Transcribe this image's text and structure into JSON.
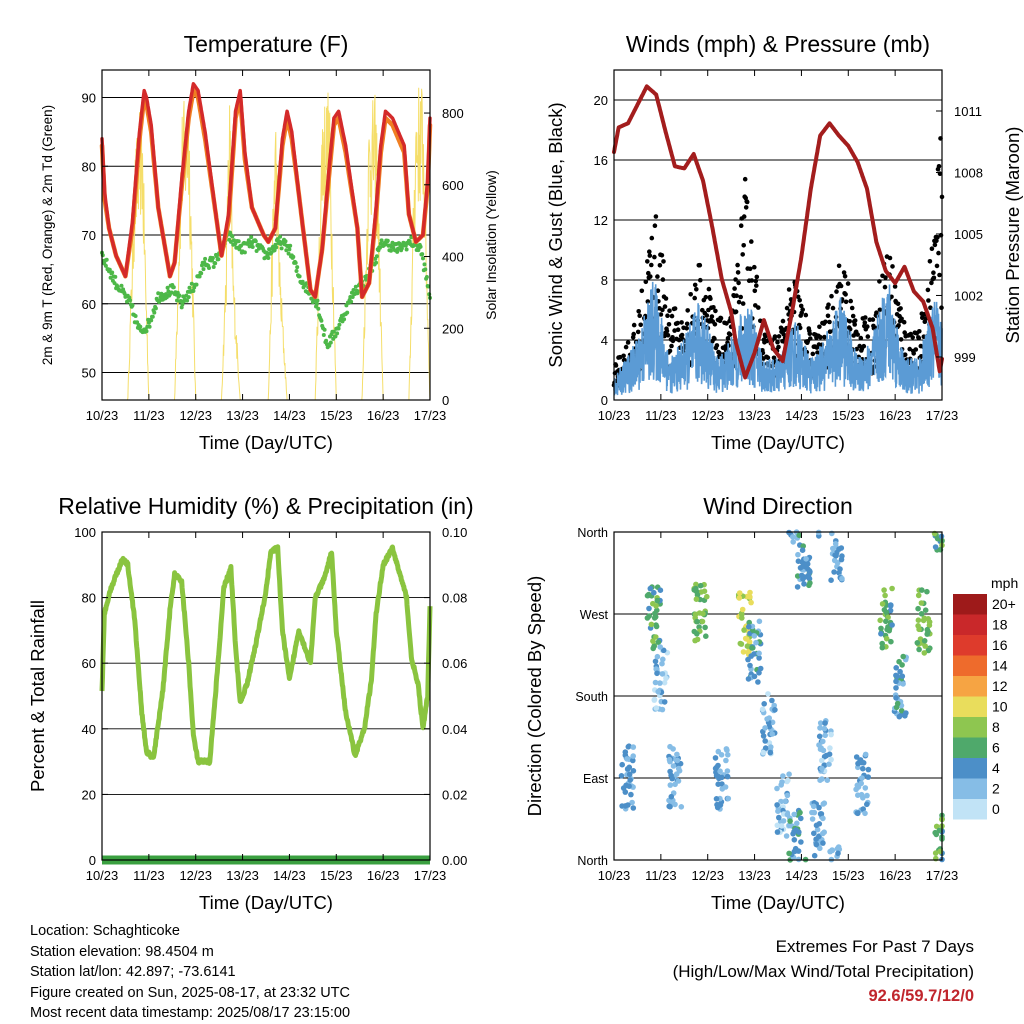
{
  "chart_data": [
    {
      "type": "line",
      "title": "Temperature (F)",
      "xlabel": "Time (Day/UTC)",
      "ylabel": "2m & 9m T (Red, Orange) & 2m Td (Green)",
      "y2label": "Solar Insolation (Yellow)",
      "x_ticks": [
        "10/23",
        "11/23",
        "12/23",
        "13/23",
        "14/23",
        "15/23",
        "16/23",
        "17/23"
      ],
      "ylim": [
        46,
        94
      ],
      "y_ticks": [
        50,
        60,
        70,
        80,
        90
      ],
      "y2lim": [
        0,
        920
      ],
      "y2_ticks": [
        0,
        200,
        400,
        600,
        800
      ],
      "grid": true,
      "colors": {
        "temp_2m": "#d42a2a",
        "temp_9m": "#f07f22",
        "dewpoint": "#4db848",
        "solar": "#f5de6a"
      },
      "series": [
        {
          "name": "2m T",
          "axis": "left",
          "x": [
            0,
            0.06,
            0.15,
            0.3,
            0.5,
            0.65,
            0.8,
            0.9,
            0.95,
            1.05,
            1.2,
            1.45,
            1.55,
            1.7,
            1.85,
            1.95,
            2.05,
            2.2,
            2.45,
            2.55,
            2.7,
            2.85,
            2.95,
            3.05,
            3.2,
            3.45,
            3.55,
            3.7,
            3.85,
            3.95,
            4.05,
            4.2,
            4.45,
            4.55,
            4.7,
            4.85,
            4.95,
            5.05,
            5.2,
            5.45,
            5.55,
            5.7,
            5.85,
            5.95,
            6.05,
            6.2,
            6.45,
            6.55,
            6.7,
            6.85,
            6.95,
            7.0
          ],
          "y": [
            84,
            76,
            71,
            67,
            64,
            72,
            85,
            91,
            90,
            86,
            74,
            64,
            66,
            78,
            88,
            92,
            91,
            85,
            72,
            67,
            73,
            88,
            91,
            82,
            74,
            70,
            69,
            71,
            84,
            88,
            85,
            76,
            62,
            61,
            68,
            80,
            87,
            88,
            83,
            71,
            61,
            63,
            74,
            83,
            88,
            87,
            83,
            73,
            69,
            70,
            78,
            87
          ]
        },
        {
          "name": "9m T",
          "axis": "left",
          "x": [
            0,
            0.06,
            0.15,
            0.3,
            0.5,
            0.65,
            0.8,
            0.9,
            0.95,
            1.05,
            1.2,
            1.45,
            1.55,
            1.7,
            1.85,
            1.95,
            2.05,
            2.2,
            2.45,
            2.55,
            2.7,
            2.85,
            2.95,
            3.05,
            3.2,
            3.45,
            3.55,
            3.7,
            3.85,
            3.95,
            4.05,
            4.2,
            4.45,
            4.55,
            4.7,
            4.85,
            4.95,
            5.05,
            5.2,
            5.45,
            5.55,
            5.7,
            5.85,
            5.95,
            6.05,
            6.2,
            6.45,
            6.55,
            6.7,
            6.85,
            6.95,
            7.0
          ],
          "y": [
            83,
            75,
            71,
            67,
            64,
            71,
            84,
            90,
            89,
            85,
            74,
            64,
            66,
            77,
            87,
            91,
            90,
            84,
            72,
            67,
            72,
            87,
            90,
            81,
            74,
            70,
            69,
            71,
            83,
            87,
            84,
            76,
            62,
            61,
            68,
            79,
            86,
            87,
            82,
            71,
            61,
            63,
            73,
            82,
            87,
            86,
            82,
            73,
            69,
            70,
            77,
            86
          ]
        },
        {
          "name": "2m Td",
          "axis": "left",
          "x": [
            0,
            0.3,
            0.6,
            0.8,
            1.0,
            1.2,
            1.5,
            1.7,
            2.0,
            2.2,
            2.4,
            2.7,
            2.8,
            3.0,
            3.2,
            3.5,
            3.8,
            4.0,
            4.2,
            4.4,
            4.6,
            4.8,
            5.0,
            5.2,
            5.4,
            5.6,
            5.8,
            6.0,
            6.3,
            6.6,
            6.8,
            7.0
          ],
          "y": [
            67,
            63,
            60,
            56,
            57,
            61,
            62,
            60,
            63,
            66,
            66,
            70,
            69,
            68,
            69,
            67,
            69,
            68,
            64,
            62,
            60,
            54,
            56,
            59,
            62,
            63,
            66,
            69,
            68,
            69,
            68,
            61
          ]
        },
        {
          "name": "Solar Insolation",
          "axis": "right",
          "x": [
            0,
            0.45,
            0.55,
            0.7,
            0.85,
            1.0,
            1.45,
            1.55,
            1.7,
            1.85,
            2.0,
            2.45,
            2.55,
            2.65,
            2.72,
            2.8,
            2.95,
            3.45,
            3.55,
            3.7,
            3.8,
            3.95,
            4.45,
            4.55,
            4.7,
            4.85,
            5.0,
            5.45,
            5.55,
            5.7,
            5.85,
            6.0,
            6.45,
            6.55,
            6.7,
            6.85,
            7.0
          ],
          "y": [
            0,
            0,
            0,
            700,
            860,
            0,
            0,
            0,
            820,
            880,
            0,
            0,
            0,
            420,
            900,
            380,
            0,
            0,
            0,
            860,
            380,
            0,
            0,
            0,
            850,
            880,
            0,
            0,
            0,
            820,
            860,
            0,
            0,
            0,
            880,
            900,
            0
          ]
        }
      ]
    },
    {
      "type": "line",
      "title": "Winds (mph) & Pressure (mb)",
      "xlabel": "Time (Day/UTC)",
      "ylabel": "Sonic Wind & Gust (Blue, Black)",
      "y2label": "Station Pressure (Maroon)",
      "x_ticks": [
        "10/23",
        "11/23",
        "12/23",
        "13/23",
        "14/23",
        "15/23",
        "16/23",
        "17/23"
      ],
      "ylim": [
        0,
        22
      ],
      "y_ticks": [
        0,
        4,
        8,
        12,
        16,
        20
      ],
      "y2lim": [
        996.9,
        1013.0
      ],
      "y2_ticks": [
        999,
        1002,
        1005,
        1008,
        1011
      ],
      "grid": true,
      "colors": {
        "wind": "#5b9bd5",
        "gust": "#000000",
        "pressure": "#a31d1d"
      },
      "series": [
        {
          "name": "Sonic Wind",
          "axis": "left",
          "x": [
            0,
            0.5,
            0.85,
            1.2,
            1.5,
            1.85,
            2.2,
            2.5,
            2.85,
            3.2,
            3.5,
            3.85,
            4.2,
            4.5,
            4.85,
            5.2,
            5.5,
            5.85,
            6.2,
            6.5,
            6.85,
            7.0
          ],
          "y": [
            1,
            3,
            6,
            2,
            3,
            5,
            2,
            3,
            5,
            2,
            2,
            4,
            2,
            3,
            5,
            2,
            3,
            6,
            2,
            2,
            5,
            4
          ]
        },
        {
          "name": "Gust",
          "axis": "left",
          "x": [
            0,
            0.5,
            0.85,
            1.2,
            1.5,
            1.85,
            2.2,
            2.5,
            2.8,
            3.2,
            3.5,
            3.85,
            4.2,
            4.5,
            4.85,
            5.2,
            5.5,
            5.85,
            6.2,
            6.5,
            6.85,
            7.0
          ],
          "y": [
            2,
            5,
            12,
            6,
            5,
            9,
            5,
            5,
            13.5,
            4,
            4,
            8,
            4,
            5,
            9,
            5,
            5,
            10,
            5,
            4,
            11,
            18
          ]
        },
        {
          "name": "Station Pressure",
          "axis": "right",
          "x": [
            0,
            0.1,
            0.3,
            0.5,
            0.7,
            0.9,
            1.1,
            1.3,
            1.5,
            1.7,
            1.9,
            2.1,
            2.3,
            2.5,
            2.6,
            2.8,
            3.0,
            3.2,
            3.4,
            3.6,
            3.8,
            4.0,
            4.2,
            4.4,
            4.6,
            4.8,
            5.0,
            5.2,
            5.4,
            5.6,
            5.8,
            6.0,
            6.2,
            6.4,
            6.6,
            6.8,
            6.95,
            7.0
          ],
          "y": [
            1009,
            1010.2,
            1010.4,
            1011.3,
            1012.2,
            1011.8,
            1010,
            1008.3,
            1008.2,
            1008.9,
            1007.6,
            1005.3,
            1002.8,
            1001.2,
            999.7,
            998,
            999.2,
            1000.8,
            999.4,
            998.8,
            1001.2,
            1003.9,
            1007.2,
            1009.8,
            1010.4,
            1009.8,
            1009.3,
            1008.5,
            1007.2,
            1004.6,
            1003.2,
            1002.6,
            1003.4,
            1002.2,
            1001.7,
            1000.4,
            998.3,
            998.9
          ]
        }
      ]
    },
    {
      "type": "line",
      "title": "Relative Humidity (%) & Precipitation (in)",
      "xlabel": "Time (Day/UTC)",
      "ylabel": "Percent & Total Rainfall",
      "x_ticks": [
        "10/23",
        "11/23",
        "12/23",
        "13/23",
        "14/23",
        "15/23",
        "16/23",
        "17/23"
      ],
      "ylim": [
        0,
        100
      ],
      "y_ticks": [
        0,
        20,
        40,
        60,
        80,
        100
      ],
      "y2lim": [
        0,
        0.1
      ],
      "y2_ticks": [
        "0.00",
        "0.02",
        "0.04",
        "0.06",
        "0.08",
        "0.10"
      ],
      "grid": true,
      "colors": {
        "rh": "#8ac43f",
        "precip": "#3aa040"
      },
      "series": [
        {
          "name": "Relative Humidity",
          "axis": "left",
          "x": [
            0,
            0.05,
            0.15,
            0.3,
            0.45,
            0.55,
            0.7,
            0.85,
            0.95,
            1.1,
            1.3,
            1.45,
            1.55,
            1.7,
            1.85,
            1.95,
            2.05,
            2.3,
            2.5,
            2.6,
            2.75,
            2.85,
            2.95,
            3.1,
            3.3,
            3.5,
            3.6,
            3.75,
            3.85,
            4.0,
            4.2,
            4.45,
            4.55,
            4.75,
            4.9,
            5.0,
            5.2,
            5.4,
            5.6,
            5.75,
            5.85,
            6.0,
            6.2,
            6.5,
            6.6,
            6.75,
            6.85,
            6.95,
            7.0
          ],
          "y": [
            51,
            75,
            81,
            87,
            92,
            90,
            73,
            45,
            33,
            31,
            52,
            76,
            87,
            85,
            60,
            38,
            30,
            30,
            64,
            83,
            89,
            65,
            48,
            54,
            67,
            82,
            94,
            95,
            70,
            55,
            70,
            60,
            80,
            86,
            94,
            70,
            45,
            32,
            40,
            55,
            75,
            90,
            95,
            80,
            62,
            53,
            40,
            50,
            77
          ]
        },
        {
          "name": "Total Precipitation",
          "axis": "right",
          "x": [
            0,
            7.0
          ],
          "y": [
            0,
            0
          ]
        }
      ]
    },
    {
      "type": "scatter",
      "title": "Wind Direction",
      "xlabel": "Time (Day/UTC)",
      "ylabel": "Direction (Colored By Speed)",
      "x_ticks": [
        "10/23",
        "11/23",
        "12/23",
        "13/23",
        "14/23",
        "15/23",
        "16/23",
        "17/23"
      ],
      "y_ticks": [
        "North",
        "East",
        "South",
        "West",
        "North"
      ],
      "ylim": [
        0,
        360
      ],
      "grid": true,
      "legend": {
        "title": "mph",
        "labels": [
          "20+",
          "18",
          "16",
          "14",
          "12",
          "10",
          "8",
          "6",
          "4",
          "2",
          "0"
        ],
        "position": "right"
      },
      "colorbar": [
        "#9e1a1a",
        "#c9282a",
        "#de3b2c",
        "#ee6b2c",
        "#f6a443",
        "#e9dd5c",
        "#8ec650",
        "#4fa96b",
        "#4c8fc8",
        "#86bde6",
        "#c1e3f6"
      ],
      "clusters": [
        {
          "x": 0.3,
          "dir": 90,
          "speed": 3
        },
        {
          "x": 0.85,
          "dir": 265,
          "speed": 6
        },
        {
          "x": 1.0,
          "dir": 200,
          "speed": 2
        },
        {
          "x": 1.3,
          "dir": 92,
          "speed": 3
        },
        {
          "x": 1.85,
          "dir": 268,
          "speed": 7
        },
        {
          "x": 2.3,
          "dir": 88,
          "speed": 3
        },
        {
          "x": 2.8,
          "dir": 260,
          "speed": 9
        },
        {
          "x": 3.0,
          "dir": 230,
          "speed": 4
        },
        {
          "x": 3.3,
          "dir": 150,
          "speed": 2
        },
        {
          "x": 3.6,
          "dir": 60,
          "speed": 2
        },
        {
          "x": 3.85,
          "dir": 20,
          "speed": 4
        },
        {
          "x": 4.05,
          "dir": 330,
          "speed": 4
        },
        {
          "x": 4.35,
          "dir": 30,
          "speed": 3
        },
        {
          "x": 4.5,
          "dir": 120,
          "speed": 2
        },
        {
          "x": 4.75,
          "dir": 340,
          "speed": 3
        },
        {
          "x": 5.3,
          "dir": 85,
          "speed": 3
        },
        {
          "x": 5.8,
          "dir": 265,
          "speed": 6
        },
        {
          "x": 6.1,
          "dir": 190,
          "speed": 4
        },
        {
          "x": 6.6,
          "dir": 262,
          "speed": 7
        },
        {
          "x": 6.95,
          "dir": 15,
          "speed": 6
        }
      ]
    }
  ],
  "footer": {
    "location": "Location: Schaghticoke",
    "elevation": "Station elevation: 98.4504 m",
    "latlon": "Station lat/lon: 42.897; -73.6141",
    "created": "Figure created on Sun, 2025-08-17, at 23:32 UTC",
    "recent": "Most recent data timestamp: 2025/08/17 23:15:00"
  },
  "extremes": {
    "title": "Extremes For Past 7 Days",
    "subtitle": "(High/Low/Max Wind/Total Precipitation)",
    "values": "92.6/59.7/12/0"
  }
}
